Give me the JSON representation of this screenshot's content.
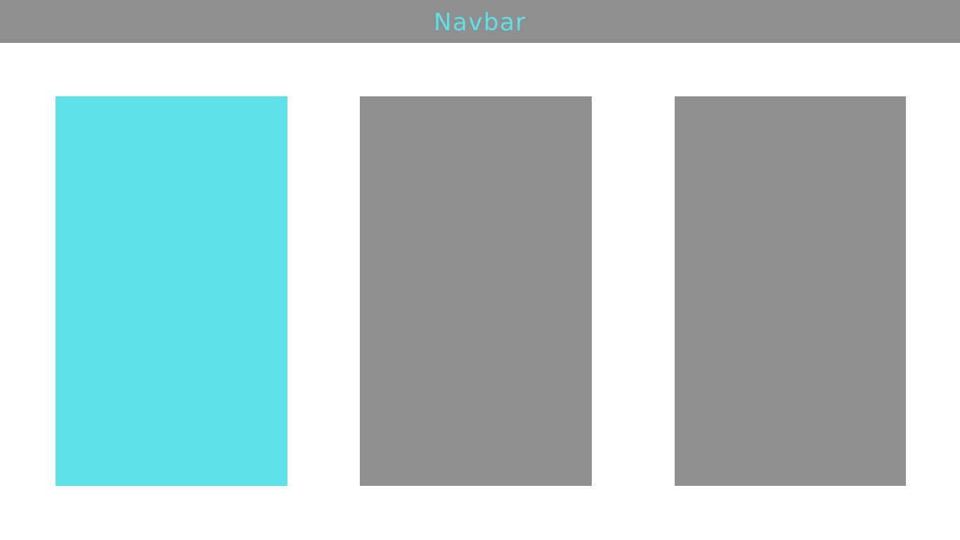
{
  "navbar": {
    "title": "Navbar",
    "background": "#8f8f8f",
    "title_color": "#5de1e6"
  },
  "panels": [
    {
      "state": "active",
      "color": "#5de1e6"
    },
    {
      "state": "inactive",
      "color": "#8f8f8f"
    },
    {
      "state": "inactive",
      "color": "#8f8f8f"
    }
  ]
}
